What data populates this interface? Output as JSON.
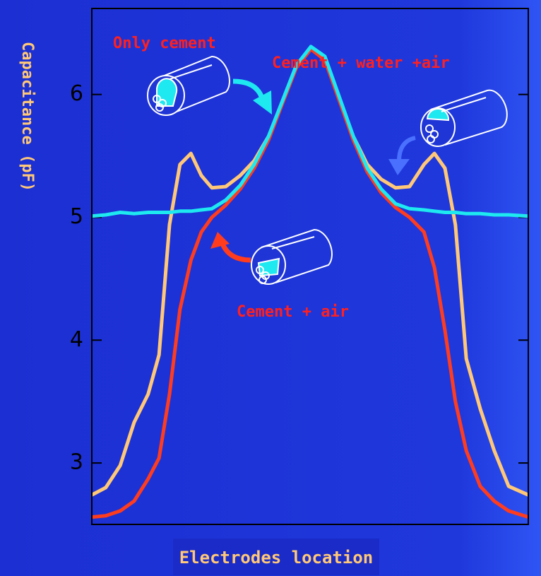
{
  "chart_data": {
    "type": "line",
    "ylabel": "Capacitance (pF)",
    "xlabel": "Electrodes location",
    "x": [
      0,
      3.2,
      6.5,
      9.7,
      12.9,
      15.4,
      17.8,
      20.2,
      22.7,
      25.1,
      27.5,
      30.7,
      34.0,
      37.2,
      40.5,
      43.7,
      46.9,
      50.2,
      53.4,
      56.6,
      59.9,
      63.1,
      66.3,
      69.6,
      72.8,
      76.1,
      78.5,
      80.9,
      83.3,
      85.8,
      89.0,
      92.2,
      95.5,
      100
    ],
    "xlim": [
      0,
      100
    ],
    "ylim": [
      2.5,
      6.7
    ],
    "yticks": [
      3,
      4,
      5,
      6
    ],
    "series": [
      {
        "color": "#ffc878",
        "values": [
          2.74,
          2.8,
          2.98,
          3.33,
          3.56,
          3.88,
          4.94,
          5.43,
          5.52,
          5.34,
          5.24,
          5.25,
          5.34,
          5.46,
          5.66,
          5.95,
          6.24,
          6.38,
          6.29,
          5.98,
          5.66,
          5.43,
          5.31,
          5.24,
          5.25,
          5.43,
          5.52,
          5.4,
          4.94,
          3.85,
          3.44,
          3.1,
          2.81,
          2.74
        ]
      },
      {
        "color": "#ff3c1e",
        "values": [
          2.56,
          2.57,
          2.61,
          2.69,
          2.87,
          3.04,
          3.56,
          4.25,
          4.65,
          4.88,
          5.0,
          5.1,
          5.23,
          5.4,
          5.63,
          5.93,
          6.22,
          6.37,
          6.28,
          5.96,
          5.63,
          5.37,
          5.2,
          5.08,
          5.0,
          4.88,
          4.59,
          4.08,
          3.5,
          3.1,
          2.81,
          2.69,
          2.61,
          2.56
        ]
      },
      {
        "color": "#1ee8f0",
        "values": [
          5.01,
          5.02,
          5.04,
          5.03,
          5.04,
          5.04,
          5.04,
          5.05,
          5.05,
          5.06,
          5.07,
          5.14,
          5.26,
          5.43,
          5.66,
          5.95,
          6.24,
          6.39,
          6.31,
          5.99,
          5.66,
          5.4,
          5.23,
          5.11,
          5.07,
          5.06,
          5.05,
          5.04,
          5.04,
          5.03,
          5.03,
          5.02,
          5.02,
          5.01
        ]
      }
    ],
    "annotations": [
      {
        "text": "Only cement",
        "color": "#ff2020"
      },
      {
        "text": "Cement + water +air",
        "color": "#ff2020"
      },
      {
        "text": "Cement + air",
        "color": "#ff2020"
      }
    ]
  }
}
